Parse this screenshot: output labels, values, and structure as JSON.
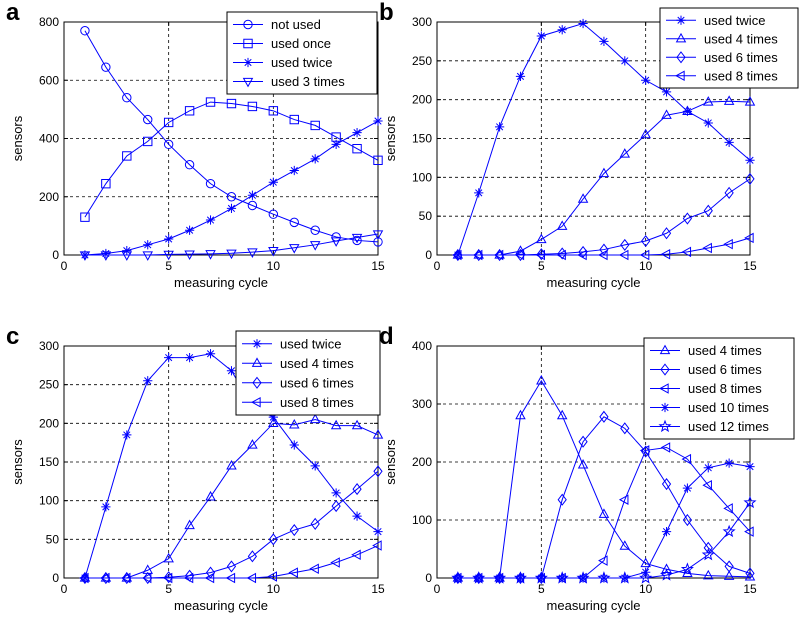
{
  "chart_data": [
    {
      "type": "line",
      "panel_label": "a",
      "xlabel": "measuring cycle",
      "ylabel": "sensors",
      "xlim": [
        0,
        15
      ],
      "ylim": [
        0,
        800
      ],
      "xticks": [
        "0",
        "5",
        "10",
        "15"
      ],
      "yticks": [
        "0",
        "200",
        "400",
        "600",
        "800"
      ],
      "grid": true,
      "legend": "top-right",
      "x": [
        1,
        2,
        3,
        4,
        5,
        6,
        7,
        8,
        9,
        10,
        11,
        12,
        13,
        14,
        15
      ],
      "series": [
        {
          "name": "not used",
          "marker": "circle",
          "values": [
            770,
            645,
            540,
            465,
            380,
            310,
            245,
            200,
            170,
            140,
            112,
            85,
            62,
            50,
            45
          ]
        },
        {
          "name": "used once",
          "marker": "square",
          "values": [
            130,
            245,
            340,
            390,
            455,
            495,
            525,
            520,
            510,
            495,
            465,
            445,
            405,
            365,
            325
          ]
        },
        {
          "name": "used twice",
          "marker": "star",
          "values": [
            0,
            5,
            15,
            35,
            55,
            85,
            120,
            160,
            205,
            250,
            290,
            330,
            380,
            420,
            460
          ]
        },
        {
          "name": "used 3 times",
          "marker": "triangle-down",
          "values": [
            0,
            0,
            0,
            0,
            2,
            3,
            4,
            6,
            10,
            15,
            25,
            35,
            48,
            60,
            72
          ]
        }
      ]
    },
    {
      "type": "line",
      "panel_label": "b",
      "xlabel": "measuring cycle",
      "ylabel": "sensors",
      "xlim": [
        0,
        15
      ],
      "ylim": [
        0,
        300
      ],
      "xticks": [
        "0",
        "5",
        "10",
        "15"
      ],
      "yticks": [
        "0",
        "50",
        "100",
        "150",
        "200",
        "250",
        "300"
      ],
      "grid": true,
      "legend": "top-right",
      "x": [
        1,
        2,
        3,
        4,
        5,
        6,
        7,
        8,
        9,
        10,
        11,
        12,
        13,
        14,
        15
      ],
      "series": [
        {
          "name": "used twice",
          "marker": "star",
          "values": [
            0,
            80,
            165,
            230,
            282,
            290,
            298,
            275,
            250,
            225,
            210,
            185,
            170,
            145,
            122
          ]
        },
        {
          "name": "used 4 times",
          "marker": "triangle-up",
          "values": [
            0,
            0,
            0,
            5,
            20,
            37,
            72,
            105,
            130,
            155,
            180,
            185,
            197,
            198,
            197
          ]
        },
        {
          "name": "used 6 times",
          "marker": "diamond",
          "values": [
            0,
            0,
            0,
            0,
            1,
            2,
            4,
            7,
            13,
            18,
            28,
            47,
            57,
            80,
            98
          ]
        },
        {
          "name": "used 8 times",
          "marker": "triangle-left",
          "values": [
            0,
            0,
            0,
            0,
            0,
            0,
            0,
            0,
            0,
            0,
            1,
            4,
            9,
            14,
            22
          ]
        }
      ]
    },
    {
      "type": "line",
      "panel_label": "c",
      "xlabel": "measuring cycle",
      "ylabel": "sensors",
      "xlim": [
        0,
        15
      ],
      "ylim": [
        0,
        300
      ],
      "xticks": [
        "0",
        "5",
        "10",
        "15"
      ],
      "yticks": [
        "0",
        "50",
        "100",
        "150",
        "200",
        "250",
        "300"
      ],
      "grid": true,
      "legend": "top-right",
      "x": [
        1,
        2,
        3,
        4,
        5,
        6,
        7,
        8,
        9,
        10,
        11,
        12,
        13,
        14,
        15
      ],
      "series": [
        {
          "name": "used twice",
          "marker": "star",
          "values": [
            0,
            92,
            185,
            255,
            285,
            285,
            290,
            268,
            222,
            208,
            172,
            145,
            110,
            80,
            60
          ]
        },
        {
          "name": "used 4 times",
          "marker": "triangle-up",
          "values": [
            0,
            0,
            0,
            10,
            25,
            68,
            105,
            145,
            172,
            200,
            198,
            205,
            197,
            197,
            185
          ]
        },
        {
          "name": "used 6 times",
          "marker": "diamond",
          "values": [
            0,
            0,
            0,
            0,
            1,
            3,
            7,
            15,
            28,
            50,
            62,
            70,
            93,
            115,
            138
          ]
        },
        {
          "name": "used 8 times",
          "marker": "triangle-left",
          "values": [
            0,
            0,
            0,
            0,
            0,
            0,
            0,
            0,
            0,
            2,
            7,
            12,
            20,
            30,
            42
          ]
        }
      ]
    },
    {
      "type": "line",
      "panel_label": "d",
      "xlabel": "measuring cycle",
      "ylabel": "sensors",
      "xlim": [
        0,
        15
      ],
      "ylim": [
        0,
        400
      ],
      "xticks": [
        "0",
        "5",
        "10",
        "15"
      ],
      "yticks": [
        "0",
        "100",
        "200",
        "300",
        "400"
      ],
      "grid": true,
      "legend": "top-right",
      "x": [
        1,
        2,
        3,
        4,
        5,
        6,
        7,
        8,
        9,
        10,
        11,
        12,
        13,
        14,
        15
      ],
      "series": [
        {
          "name": "used 4 times",
          "marker": "triangle-up",
          "values": [
            0,
            0,
            0,
            280,
            340,
            280,
            195,
            110,
            55,
            25,
            15,
            8,
            4,
            3,
            2
          ]
        },
        {
          "name": "used 6 times",
          "marker": "diamond",
          "values": [
            0,
            0,
            0,
            0,
            0,
            135,
            235,
            278,
            258,
            218,
            162,
            100,
            52,
            20,
            8
          ]
        },
        {
          "name": "used 8 times",
          "marker": "triangle-left",
          "values": [
            0,
            0,
            0,
            0,
            0,
            0,
            0,
            30,
            135,
            220,
            225,
            205,
            160,
            120,
            80
          ]
        },
        {
          "name": "used 10 times",
          "marker": "star",
          "values": [
            0,
            0,
            0,
            0,
            0,
            0,
            0,
            0,
            0,
            10,
            80,
            155,
            190,
            198,
            192
          ]
        },
        {
          "name": "used 12 times",
          "marker": "hexagram",
          "values": [
            0,
            0,
            0,
            0,
            0,
            0,
            0,
            0,
            0,
            0,
            5,
            15,
            40,
            80,
            130
          ]
        }
      ]
    }
  ]
}
